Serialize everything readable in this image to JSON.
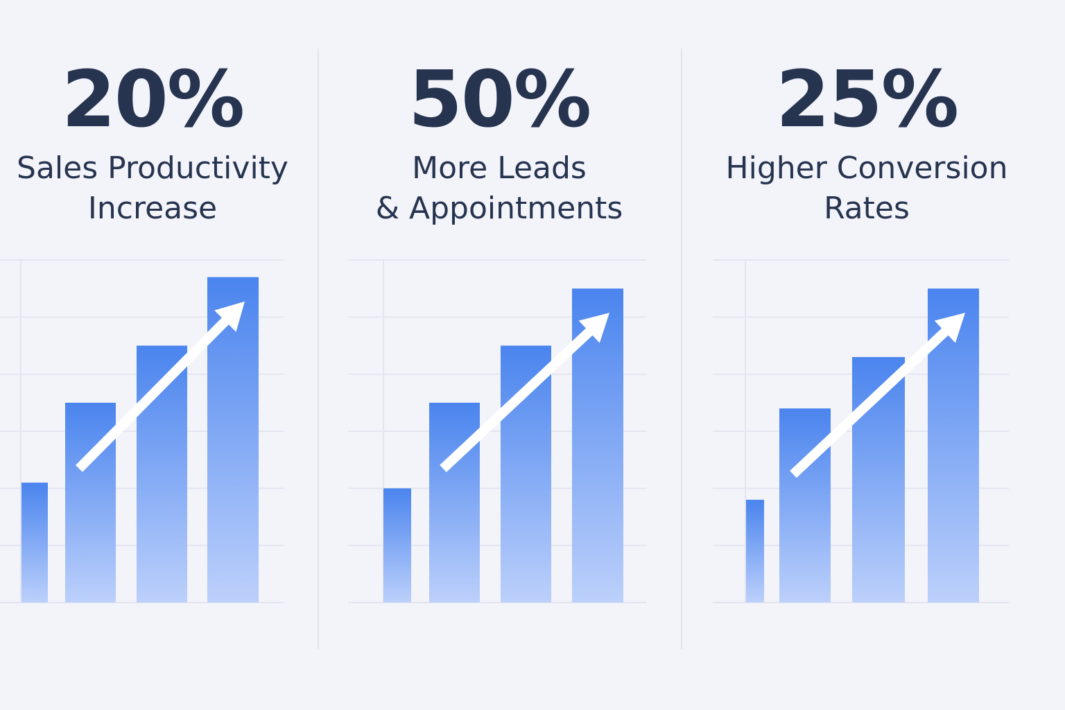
{
  "stats": [
    {
      "value": "20%",
      "label_lines": [
        "Sales Productivity",
        "Increase"
      ]
    },
    {
      "value": "50%",
      "label_lines": [
        "More Leads",
        "& Appointments"
      ]
    },
    {
      "value": "25%",
      "label_lines": [
        "Higher Conversion",
        "Rates"
      ]
    }
  ],
  "colors": {
    "background": "#f3f3fa",
    "text": "#26344f",
    "bar_top": "#4a84ee",
    "bar_bottom": "#bcd0fb",
    "grid": "#e4e4ef",
    "arrow": "#ffffff"
  },
  "chart_data": [
    {
      "type": "bar",
      "values": [
        2.1,
        3.5,
        4.5,
        5.7
      ],
      "ylim": [
        0,
        6
      ],
      "grid": true,
      "arrow": "trend-up"
    },
    {
      "type": "bar",
      "values": [
        2.0,
        3.5,
        4.5,
        5.5
      ],
      "ylim": [
        0,
        6
      ],
      "grid": true,
      "arrow": "trend-up"
    },
    {
      "type": "bar",
      "values": [
        1.8,
        3.4,
        4.3,
        5.5
      ],
      "ylim": [
        0,
        6
      ],
      "grid": true,
      "arrow": "trend-up"
    }
  ]
}
